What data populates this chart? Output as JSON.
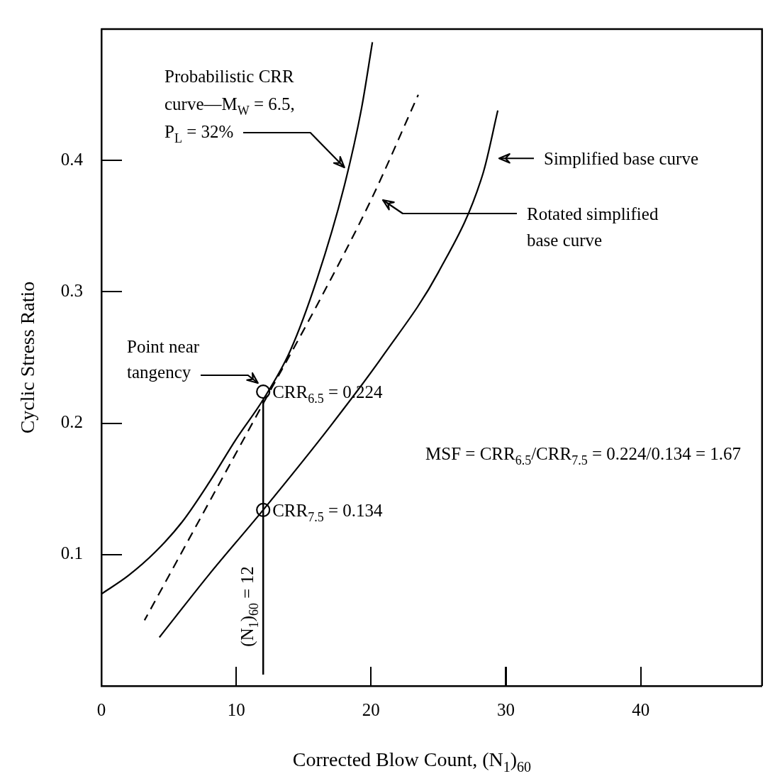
{
  "chart_data": {
    "type": "line",
    "xlabel": "Corrected Blow Count, (N$_{1}$)$_{60}$",
    "ylabel": "Cyclic Stress Ratio",
    "xlim": [
      0,
      49
    ],
    "ylim": [
      0,
      0.5
    ],
    "xticks": [
      0,
      10,
      20,
      30,
      40
    ],
    "yticks": [
      0.1,
      0.2,
      0.3,
      0.4
    ],
    "grid": false,
    "legend": false,
    "series": [
      {
        "color": "#000000",
        "line_style": "solid",
        "marker": "none",
        "x": [
          0,
          2,
          4,
          6,
          8,
          10,
          12,
          14,
          16,
          18,
          19.3,
          20.1
        ],
        "values": [
          0.07,
          0.084,
          0.102,
          0.125,
          0.155,
          0.188,
          0.218,
          0.255,
          0.31,
          0.38,
          0.44,
          0.49
        ]
      },
      {
        "color": "#000000",
        "line_style": "dashed",
        "marker": "none",
        "x": [
          3.2,
          8,
          12,
          16,
          20,
          23.5
        ],
        "values": [
          0.05,
          0.14,
          0.215,
          0.29,
          0.37,
          0.45
        ]
      },
      {
        "color": "#000000",
        "line_style": "solid",
        "marker": "none",
        "x": [
          4.3,
          8,
          12,
          17,
          21,
          25,
          28.3,
          29.4
        ],
        "values": [
          0.037,
          0.085,
          0.134,
          0.198,
          0.253,
          0.315,
          0.39,
          0.438
        ]
      },
      {
        "type": "scatter",
        "color": "#000000",
        "marker": "circle",
        "x": [
          12,
          12
        ],
        "values": [
          0.224,
          0.134
        ],
        "value_labels": [
          "CRR$_{6.5}$ = 0.224",
          "CRR$_{7.5}$ = 0.134"
        ]
      }
    ],
    "ref_lines": [
      {
        "axis": "x",
        "value": 12,
        "label": "(N$_{1}$)$_{60}$ = 12",
        "color": "#000000"
      }
    ],
    "annotations": [
      "Probabilistic CRR curve—M$_{W}$ = 6.5, P$_{L}$ = 32%",
      "Simplified base curve",
      "Rotated simplified base curve",
      "Point near tangency",
      "MSF = CRR$_{6.5}$/CRR$_{7.5}$ = 0.224/0.134 = 1.67"
    ]
  }
}
